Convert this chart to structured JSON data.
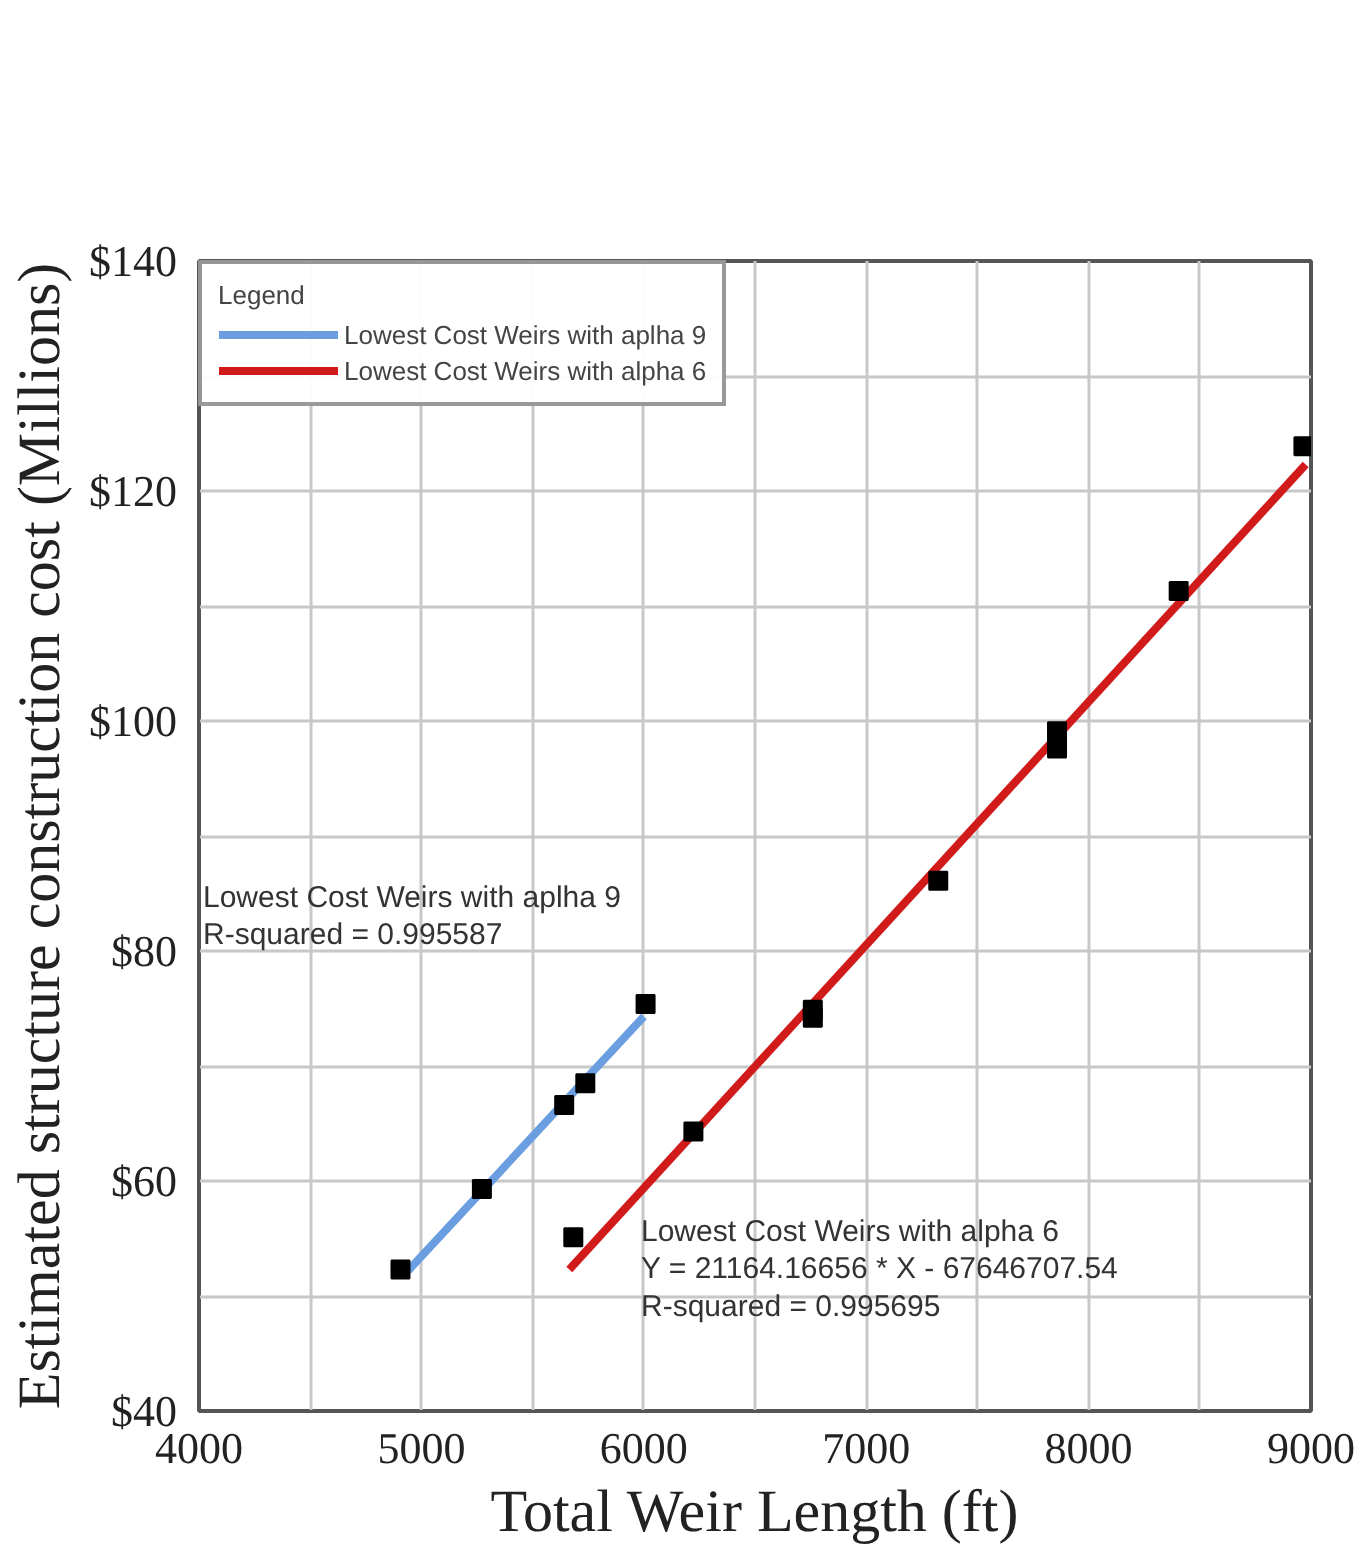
{
  "chart_data": {
    "type": "line",
    "xlabel": "Total Weir Length (ft)",
    "ylabel": "Estimated structure construction cost (Millions)",
    "legend_title": "Legend",
    "legend": "top left",
    "grid": true,
    "xlim": [
      4000,
      9000
    ],
    "ylim": [
      40,
      140
    ],
    "xticks": [
      4000,
      {
        "value": 4500,
        "label": null
      },
      5000,
      {
        "value": 5500,
        "label": null
      },
      6000,
      {
        "value": 6500,
        "label": null
      },
      7000,
      {
        "value": 7500,
        "label": null
      },
      8000,
      {
        "value": 8500,
        "label": null
      },
      9000
    ],
    "yticks": [
      {
        "value": 40,
        "label": "$40"
      },
      {
        "value": 50,
        "label": null
      },
      {
        "value": 60,
        "label": "$60"
      },
      {
        "value": 70,
        "label": null
      },
      {
        "value": 80,
        "label": "$80"
      },
      {
        "value": 90,
        "label": null
      },
      {
        "value": 100,
        "label": "$100"
      },
      {
        "value": 110,
        "label": null
      },
      {
        "value": 120,
        "label": "$120"
      },
      {
        "value": 130,
        "label": null
      },
      {
        "value": 140,
        "label": "$140"
      }
    ],
    "series": [
      {
        "name": "Lowest Cost Weirs with aplha 9",
        "marker": "none",
        "color": "#6a9ee0",
        "x": [
          4940,
          6000
        ],
        "values": [
          52.2,
          74.3
        ]
      },
      {
        "name": "Lowest Cost Weirs with alpha 6",
        "marker": "none",
        "color": "#d11a1a",
        "x": [
          5665,
          8976
        ],
        "values": [
          52.3,
          122.3
        ]
      },
      {
        "type": "scatter",
        "marker": "square",
        "color": "#000000",
        "x": [
          4906,
          5272,
          5642,
          5737,
          6008
        ],
        "values": [
          52.3,
          59.3,
          66.6,
          68.5,
          75.4
        ]
      },
      {
        "type": "scatter",
        "marker": "square",
        "color": "#000000",
        "x": [
          5683,
          6223,
          6760,
          6760,
          7324,
          7858,
          7858,
          8405,
          8966
        ],
        "values": [
          55.1,
          64.3,
          74.9,
          74.2,
          86.1,
          99.1,
          97.6,
          111.3,
          123.9
        ]
      }
    ],
    "annotations": [
      "Lowest Cost Weirs with aplha 9\nR-squared = 0.995587",
      "Lowest Cost Weirs with alpha 6\nY = 21164.16656 * X - 67646707.54\nR-squared = 0.995695"
    ]
  }
}
